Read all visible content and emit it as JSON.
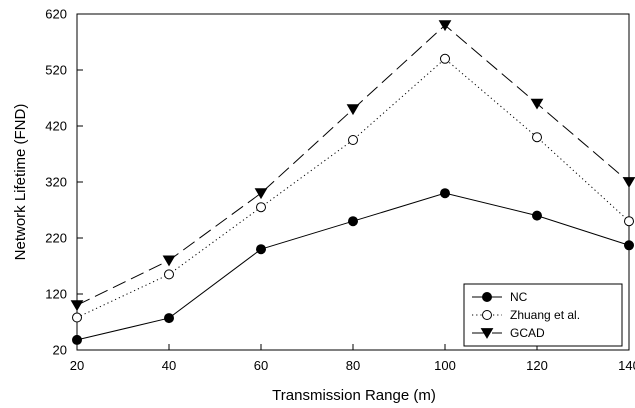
{
  "chart_data": {
    "type": "line",
    "xlabel": "Transmission Range (m)",
    "ylabel": "Network Lifetime (FND)",
    "xlim": [
      20,
      140
    ],
    "ylim": [
      20,
      620
    ],
    "xticks": [
      20,
      40,
      60,
      80,
      100,
      120,
      140
    ],
    "yticks": [
      20,
      120,
      220,
      320,
      420,
      520,
      620
    ],
    "x": [
      20,
      40,
      60,
      80,
      100,
      120,
      140
    ],
    "grid": false,
    "legend_position": "bottom-right",
    "series": [
      {
        "name": "NC",
        "values": [
          38,
          77,
          200,
          250,
          300,
          260,
          207
        ],
        "line_style": "solid",
        "marker": "filled-circle",
        "color": "#000000"
      },
      {
        "name": "Zhuang et al.",
        "values": [
          78,
          155,
          275,
          395,
          540,
          400,
          250
        ],
        "line_style": "dotted",
        "marker": "open-circle",
        "color": "#000000"
      },
      {
        "name": "GCAD",
        "values": [
          100,
          180,
          300,
          450,
          600,
          460,
          320
        ],
        "line_style": "long-dash",
        "marker": "filled-triangle-down",
        "color": "#000000"
      }
    ]
  }
}
